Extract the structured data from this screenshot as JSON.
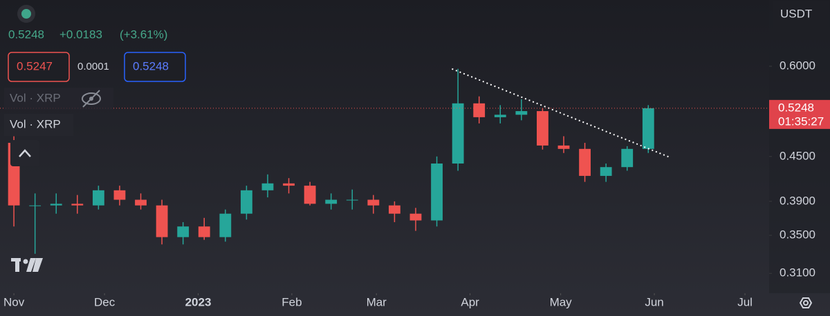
{
  "chart_data": {
    "type": "candlestick",
    "scale": "log",
    "header": {
      "price": "0.5248",
      "change": "+0.0183",
      "change_pct": "(+3.61%)",
      "sell": "0.5247",
      "spread": "0.0001",
      "buy": "0.5248",
      "volume_label": "Vol · XRP",
      "volume_label_2": "Vol · XRP",
      "currency": "USDT"
    },
    "up_color": "#26a69a",
    "down_color": "#ef5350",
    "x": [
      0,
      7,
      14,
      21,
      28,
      35,
      42,
      49,
      56,
      63,
      70,
      77,
      84,
      91,
      98,
      105,
      112,
      119,
      126,
      133,
      140,
      147,
      154,
      161,
      168,
      175,
      182,
      189,
      196,
      203,
      210
    ],
    "open": [
      0.47,
      0.385,
      0.385,
      0.387,
      0.385,
      0.404,
      0.392,
      0.385,
      0.348,
      0.36,
      0.348,
      0.375,
      0.404,
      0.413,
      0.41,
      0.387,
      0.392,
      0.392,
      0.385,
      0.375,
      0.367,
      0.44,
      0.533,
      0.51,
      0.514,
      0.52,
      0.466,
      0.461,
      0.423,
      0.435,
      0.461
    ],
    "high": [
      0.48,
      0.4,
      0.4,
      0.398,
      0.41,
      0.41,
      0.4,
      0.392,
      0.365,
      0.37,
      0.38,
      0.41,
      0.425,
      0.42,
      0.415,
      0.4,
      0.405,
      0.398,
      0.39,
      0.382,
      0.45,
      0.595,
      0.545,
      0.53,
      0.54,
      0.525,
      0.48,
      0.47,
      0.44,
      0.465,
      0.53
    ],
    "low": [
      0.36,
      0.33,
      0.375,
      0.375,
      0.38,
      0.385,
      0.38,
      0.34,
      0.34,
      0.345,
      0.343,
      0.368,
      0.395,
      0.4,
      0.385,
      0.38,
      0.38,
      0.375,
      0.365,
      0.355,
      0.36,
      0.43,
      0.5,
      0.5,
      0.505,
      0.46,
      0.455,
      0.415,
      0.415,
      0.43,
      0.455
    ],
    "close": [
      0.385,
      0.385,
      0.387,
      0.385,
      0.404,
      0.392,
      0.385,
      0.348,
      0.36,
      0.348,
      0.375,
      0.404,
      0.413,
      0.41,
      0.387,
      0.392,
      0.392,
      0.385,
      0.375,
      0.367,
      0.44,
      0.533,
      0.51,
      0.514,
      0.52,
      0.466,
      0.461,
      0.423,
      0.435,
      0.461,
      0.5248
    ],
    "trendline": {
      "x": [
        145,
        217
      ],
      "values": [
        0.595,
        0.449
      ]
    },
    "last_price": 0.5248,
    "countdown": "01:35:27",
    "xlim": [
      -4.6,
      250
    ],
    "ylim": [
      0.291,
      0.741
    ],
    "xticks": [
      {
        "value": 0,
        "label": "Nov"
      },
      {
        "value": 30,
        "label": "Dec"
      },
      {
        "value": 61,
        "label": "2023"
      },
      {
        "value": 92,
        "label": "Feb"
      },
      {
        "value": 120,
        "label": "Mar"
      },
      {
        "value": 151,
        "label": "Apr"
      },
      {
        "value": 181,
        "label": "May"
      },
      {
        "value": 212,
        "label": "Jun"
      },
      {
        "value": 242,
        "label": "Jul"
      }
    ],
    "yticks": [
      {
        "value": 0.6,
        "label": "0.6000"
      },
      {
        "value": 0.45,
        "label": "0.4500"
      },
      {
        "value": 0.39,
        "label": "0.3900"
      },
      {
        "value": 0.35,
        "label": "0.3500"
      },
      {
        "value": 0.31,
        "label": "0.3100"
      }
    ]
  }
}
